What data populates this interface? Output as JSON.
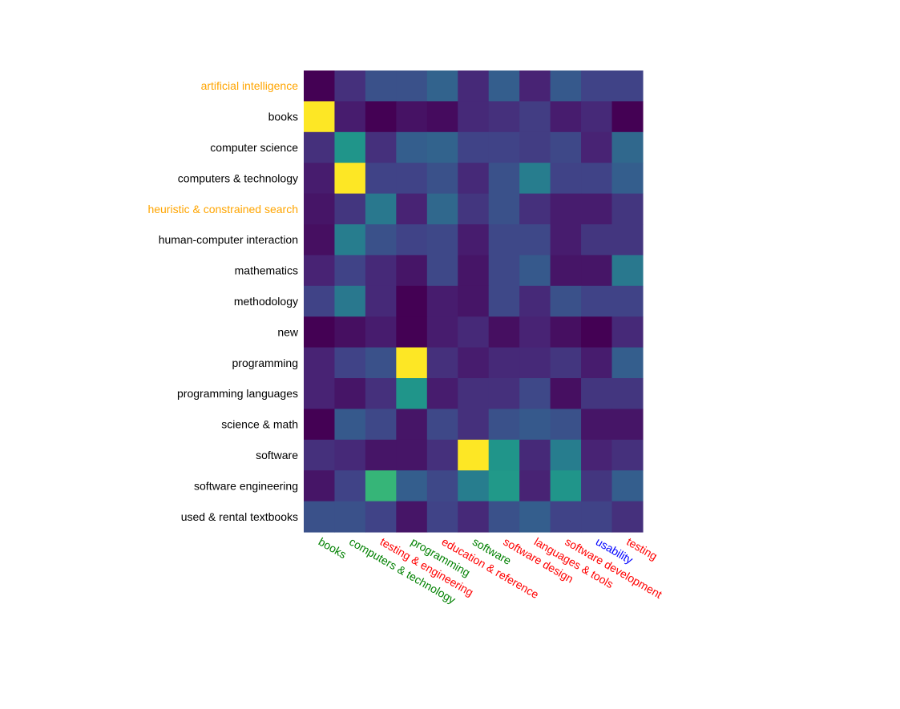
{
  "chart_data": {
    "type": "heatmap",
    "colormap": "viridis",
    "vmin": 0,
    "vmax": 1,
    "rows": [
      {
        "label": "artificial intelligence",
        "color": "#ffa500"
      },
      {
        "label": "books",
        "color": "#000000"
      },
      {
        "label": "computer science",
        "color": "#000000"
      },
      {
        "label": "computers & technology",
        "color": "#000000"
      },
      {
        "label": "heuristic & constrained search",
        "color": "#ffa500"
      },
      {
        "label": "human-computer interaction",
        "color": "#000000"
      },
      {
        "label": "mathematics",
        "color": "#000000"
      },
      {
        "label": "methodology",
        "color": "#000000"
      },
      {
        "label": "new",
        "color": "#000000"
      },
      {
        "label": "programming",
        "color": "#000000"
      },
      {
        "label": "programming languages",
        "color": "#000000"
      },
      {
        "label": "science & math",
        "color": "#000000"
      },
      {
        "label": "software",
        "color": "#000000"
      },
      {
        "label": "software engineering",
        "color": "#000000"
      },
      {
        "label": "used & rental textbooks",
        "color": "#000000"
      }
    ],
    "columns": [
      {
        "label": "books",
        "color": "#008000"
      },
      {
        "label": "computers & technology",
        "color": "#008000"
      },
      {
        "label": "testing & engineering",
        "color": "#ff0000"
      },
      {
        "label": "programming",
        "color": "#008000"
      },
      {
        "label": "education & reference",
        "color": "#ff0000"
      },
      {
        "label": "software",
        "color": "#008000"
      },
      {
        "label": "software design",
        "color": "#ff0000"
      },
      {
        "label": "languages & tools",
        "color": "#ff0000"
      },
      {
        "label": "software development",
        "color": "#ff0000"
      },
      {
        "label": "usability",
        "color": "#0000ff"
      },
      {
        "label": "testing",
        "color": "#ff0000"
      }
    ],
    "values": [
      [
        0.0,
        0.14,
        0.25,
        0.25,
        0.32,
        0.12,
        0.3,
        0.1,
        0.28,
        0.2,
        0.2
      ],
      [
        1.0,
        0.08,
        0.0,
        0.05,
        0.03,
        0.12,
        0.14,
        0.18,
        0.08,
        0.12,
        0.0
      ],
      [
        0.14,
        0.52,
        0.14,
        0.3,
        0.32,
        0.2,
        0.2,
        0.18,
        0.22,
        0.1,
        0.34
      ],
      [
        0.08,
        1.0,
        0.2,
        0.2,
        0.25,
        0.12,
        0.25,
        0.42,
        0.2,
        0.2,
        0.3
      ],
      [
        0.06,
        0.16,
        0.4,
        0.1,
        0.34,
        0.16,
        0.25,
        0.14,
        0.08,
        0.08,
        0.16
      ],
      [
        0.04,
        0.42,
        0.25,
        0.2,
        0.22,
        0.08,
        0.22,
        0.22,
        0.08,
        0.16,
        0.16
      ],
      [
        0.1,
        0.2,
        0.12,
        0.06,
        0.22,
        0.06,
        0.22,
        0.28,
        0.06,
        0.06,
        0.4
      ],
      [
        0.2,
        0.4,
        0.12,
        0.0,
        0.08,
        0.06,
        0.22,
        0.12,
        0.25,
        0.2,
        0.2
      ],
      [
        0.0,
        0.04,
        0.08,
        0.0,
        0.08,
        0.12,
        0.04,
        0.1,
        0.04,
        0.0,
        0.12
      ],
      [
        0.1,
        0.2,
        0.25,
        1.0,
        0.14,
        0.08,
        0.12,
        0.12,
        0.16,
        0.08,
        0.3
      ],
      [
        0.1,
        0.06,
        0.14,
        0.52,
        0.08,
        0.14,
        0.14,
        0.22,
        0.04,
        0.16,
        0.16
      ],
      [
        0.0,
        0.28,
        0.22,
        0.06,
        0.22,
        0.14,
        0.25,
        0.28,
        0.25,
        0.06,
        0.06
      ],
      [
        0.14,
        0.12,
        0.06,
        0.06,
        0.14,
        1.0,
        0.52,
        0.12,
        0.42,
        0.1,
        0.14
      ],
      [
        0.06,
        0.2,
        0.66,
        0.3,
        0.22,
        0.42,
        0.54,
        0.1,
        0.52,
        0.16,
        0.3
      ],
      [
        0.25,
        0.25,
        0.2,
        0.06,
        0.2,
        0.12,
        0.25,
        0.3,
        0.2,
        0.2,
        0.14
      ]
    ]
  }
}
